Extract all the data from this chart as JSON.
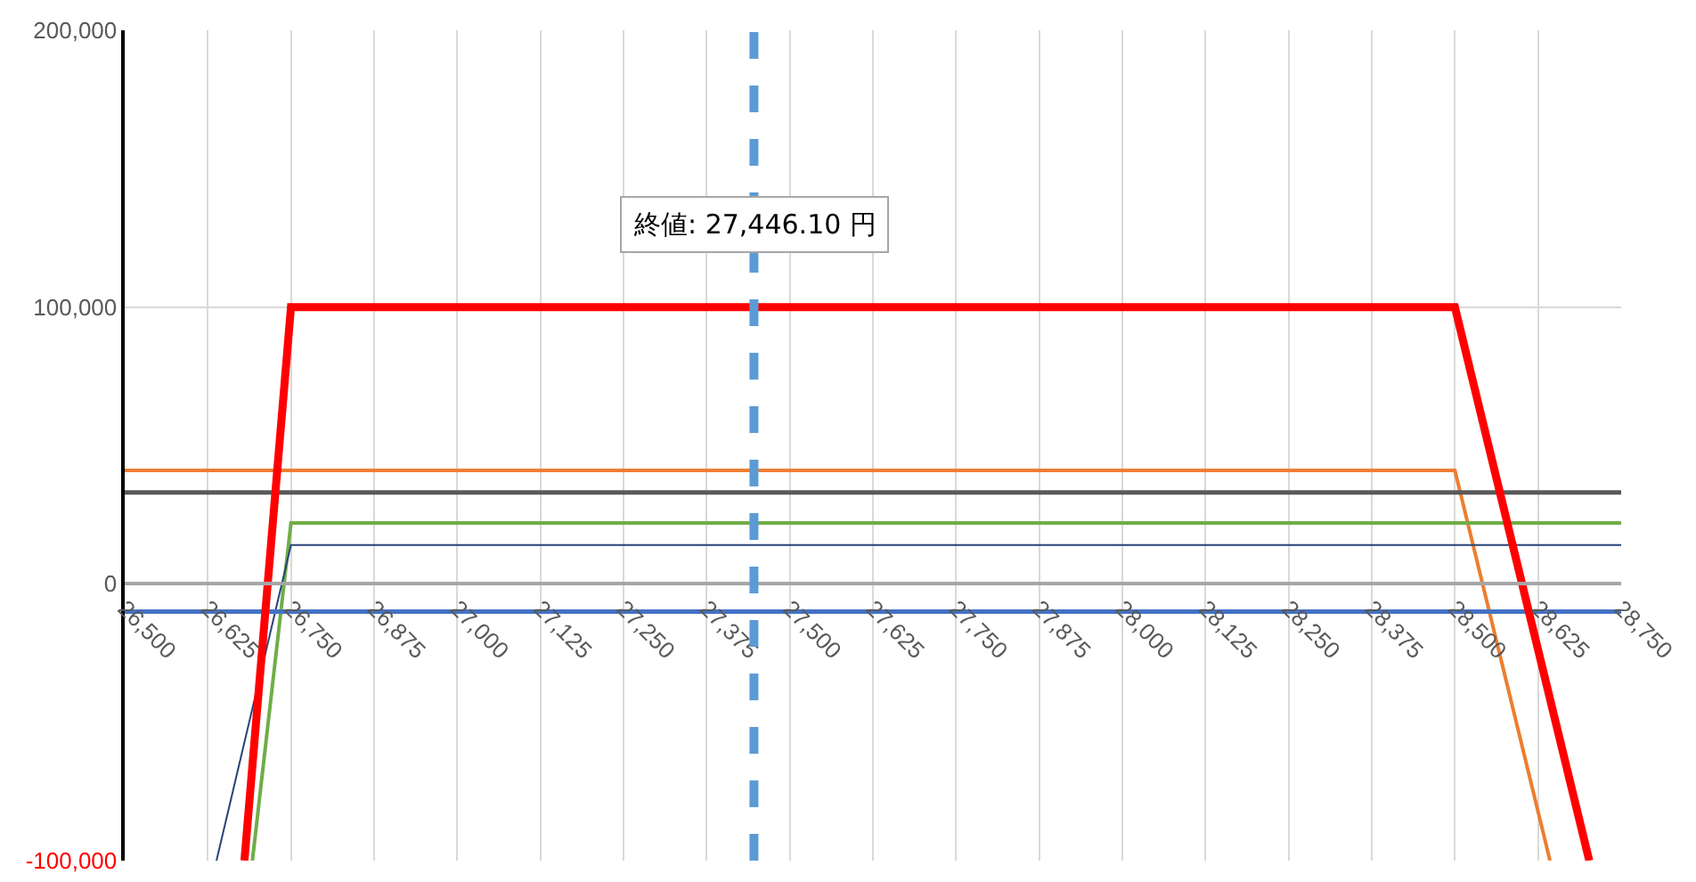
{
  "chart_data": {
    "type": "line",
    "xlim": [
      26500,
      28750
    ],
    "xticks": [
      {
        "value": 26500,
        "label": "26,500"
      },
      {
        "value": 26625,
        "label": "26,625"
      },
      {
        "value": 26750,
        "label": "26,750"
      },
      {
        "value": 26875,
        "label": "26,875"
      },
      {
        "value": 27000,
        "label": "27,000"
      },
      {
        "value": 27125,
        "label": "27,125"
      },
      {
        "value": 27250,
        "label": "27,250"
      },
      {
        "value": 27375,
        "label": "27,375"
      },
      {
        "value": 27500,
        "label": "27,500"
      },
      {
        "value": 27625,
        "label": "27,625"
      },
      {
        "value": 27750,
        "label": "27,750"
      },
      {
        "value": 27875,
        "label": "27,875"
      },
      {
        "value": 28000,
        "label": "28,000"
      },
      {
        "value": 28125,
        "label": "28,125"
      },
      {
        "value": 28250,
        "label": "28,250"
      },
      {
        "value": 28375,
        "label": "28,375"
      },
      {
        "value": 28500,
        "label": "28,500"
      },
      {
        "value": 28625,
        "label": "28,625"
      },
      {
        "value": 28750,
        "label": "28,750"
      }
    ],
    "ylim": [
      -100000,
      200000
    ],
    "yticks": [
      {
        "value": -100000,
        "label": "-100,000"
      },
      0,
      {
        "value": 100000,
        "label": "100,000"
      },
      {
        "value": 200000,
        "label": "200,000"
      }
    ],
    "grid": true,
    "marker": "none",
    "line_style": "solid",
    "series": [
      {
        "color": "#ed7d31",
        "x": [
          26500,
          28500,
          28643
        ],
        "values": [
          41000,
          41000,
          -100000
        ]
      },
      {
        "color": "#595959",
        "x": [
          26500,
          28750
        ],
        "values": [
          33000,
          33000
        ]
      },
      {
        "color": "#70ad47",
        "x": [
          26692,
          26750,
          28750
        ],
        "values": [
          -100000,
          22000,
          22000
        ]
      },
      {
        "color": "#264478",
        "x": [
          26638,
          26750,
          28750
        ],
        "values": [
          -100000,
          14000,
          14000
        ]
      },
      {
        "color": "#4472c4",
        "x": [
          26500,
          28750
        ],
        "values": [
          -10000,
          -10000
        ]
      },
      {
        "color": "#ff0000",
        "x": [
          26680,
          26750,
          28500,
          28702
        ],
        "values": [
          -100000,
          100000,
          100000,
          -100000
        ]
      }
    ],
    "ref_lines": [
      {
        "axis": "x",
        "value": 27446.1,
        "label": "終値: 27,446.10 円",
        "color": "#5b9bd5",
        "line_style": "dashed"
      }
    ]
  }
}
